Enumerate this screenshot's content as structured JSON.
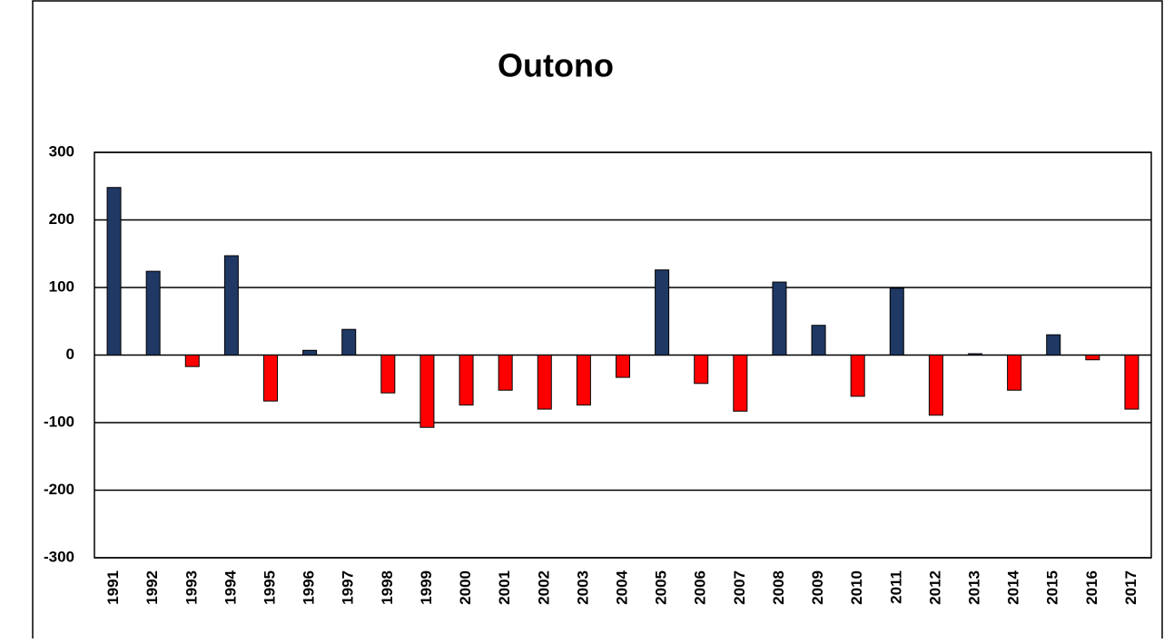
{
  "chart_data": {
    "type": "bar",
    "title": "Outono",
    "categories": [
      "1991",
      "1992",
      "1993",
      "1994",
      "1995",
      "1996",
      "1997",
      "1998",
      "1999",
      "2000",
      "2001",
      "2002",
      "2003",
      "2004",
      "2005",
      "2006",
      "2007",
      "2008",
      "2009",
      "2010",
      "2011",
      "2012",
      "2013",
      "2014",
      "2015",
      "2016",
      "2017"
    ],
    "values": [
      248,
      124,
      -17,
      147,
      -68,
      7,
      38,
      -56,
      -107,
      -74,
      -52,
      -80,
      -74,
      -33,
      126,
      -42,
      -83,
      108,
      44,
      -61,
      99,
      -89,
      2,
      -52,
      30,
      -7,
      -80
    ],
    "color": "#1f3864",
    "negative_color": "#ff0000",
    "ylim": [
      -300,
      300
    ],
    "yticks": [
      -300,
      -200,
      -100,
      0,
      100,
      200,
      300
    ],
    "grid": true
  }
}
